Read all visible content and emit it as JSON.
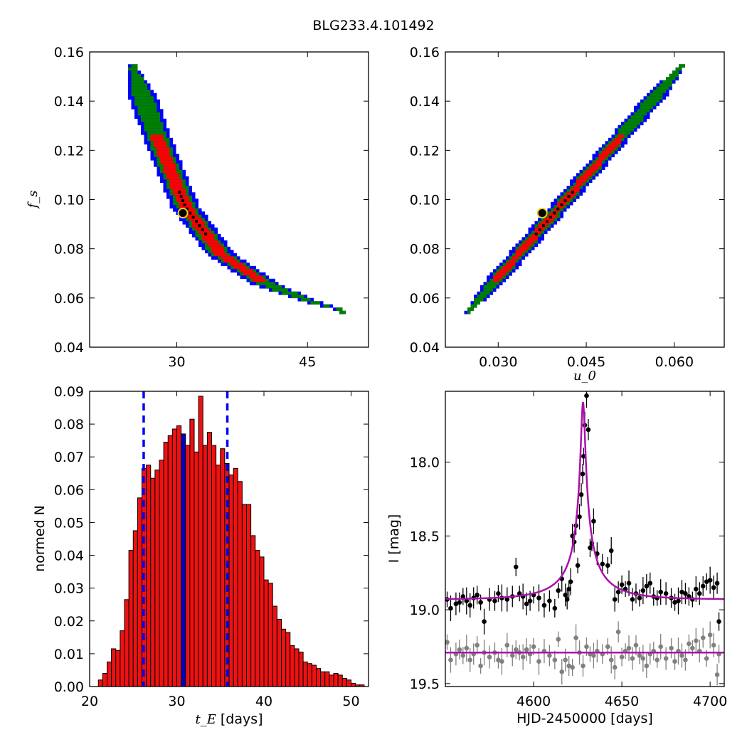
{
  "figure": {
    "title": "BLG233.4.101492"
  },
  "colors": {
    "region_outer": "#0000ff",
    "region_mid": "#008000",
    "region_inner": "#ff0000",
    "best_fit_marker": "#e8d020",
    "hist_fill": "#ee1111",
    "hist_peak": "#0000cc",
    "dashed_lines": "#0000ff",
    "model_curve": "#aa11aa",
    "data_primary": "#000000",
    "data_secondary": "#808080"
  },
  "chart_data": [
    {
      "id": "tE-vs-fs",
      "type": "heatmap",
      "title": "",
      "xlabel": "",
      "ylabel": "f_s",
      "xlim": [
        20,
        52
      ],
      "ylim": [
        0.04,
        0.16
      ],
      "xticks": [
        "30",
        "45"
      ],
      "xtick_values": [
        30,
        45
      ],
      "yticks": [
        "0.04",
        "0.06",
        "0.08",
        "0.10",
        "0.12",
        "0.14",
        "0.16"
      ],
      "ytick_values": [
        0.04,
        0.06,
        0.08,
        0.1,
        0.12,
        0.14,
        0.16
      ],
      "band_centerline": {
        "x": [
          25,
          28,
          31,
          35,
          40,
          45,
          49
        ],
        "y": [
          0.153,
          0.123,
          0.097,
          0.078,
          0.066,
          0.059,
          0.055
        ]
      },
      "best_fit": {
        "x": 30.7,
        "y": 0.0945
      }
    },
    {
      "id": "u0-vs-fs",
      "type": "heatmap",
      "title": "",
      "xlabel": "u_0",
      "ylabel": "",
      "xlim": [
        0.021,
        0.0685
      ],
      "ylim": [
        0.04,
        0.16
      ],
      "xticks": [
        "0.030",
        "0.045",
        "0.060"
      ],
      "xtick_values": [
        0.03,
        0.045,
        0.06
      ],
      "yticks": [
        "0.04",
        "0.06",
        "0.08",
        "0.10",
        "0.12",
        "0.14",
        "0.16"
      ],
      "ytick_values": [
        0.04,
        0.06,
        0.08,
        0.1,
        0.12,
        0.14,
        0.16
      ],
      "band_endpoints": {
        "x": [
          0.0252,
          0.0612
        ],
        "y": [
          0.055,
          0.154
        ]
      },
      "best_fit": {
        "x": 0.0375,
        "y": 0.0945
      }
    },
    {
      "id": "tE-histogram",
      "type": "bar",
      "title": "",
      "xlabel": "t_E",
      "xlabel_unit": "[days]",
      "ylabel": "normed N",
      "xlim": [
        20,
        52
      ],
      "ylim": [
        0,
        0.09
      ],
      "xticks": [
        "20",
        "30",
        "40",
        "50"
      ],
      "xtick_values": [
        20,
        30,
        40,
        50
      ],
      "yticks": [
        "0.00",
        "0.01",
        "0.02",
        "0.03",
        "0.04",
        "0.05",
        "0.06",
        "0.07",
        "0.08",
        "0.09"
      ],
      "ytick_values": [
        0,
        0.01,
        0.02,
        0.03,
        0.04,
        0.05,
        0.06,
        0.07,
        0.08,
        0.09
      ],
      "bin_start": 20.0,
      "bin_width": 0.5,
      "values": [
        0.0,
        0.0,
        0.002,
        0.004,
        0.0075,
        0.0115,
        0.011,
        0.017,
        0.0265,
        0.0415,
        0.0475,
        0.0575,
        0.0665,
        0.0675,
        0.0635,
        0.066,
        0.069,
        0.0745,
        0.0765,
        0.0785,
        0.0795,
        0.077,
        0.0735,
        0.0815,
        0.0715,
        0.0885,
        0.0735,
        0.0775,
        0.0735,
        0.0675,
        0.0725,
        0.068,
        0.0645,
        0.0665,
        0.0625,
        0.0555,
        0.0555,
        0.046,
        0.0415,
        0.0395,
        0.0325,
        0.0315,
        0.0245,
        0.0205,
        0.0175,
        0.0165,
        0.0125,
        0.0115,
        0.0105,
        0.0075,
        0.007,
        0.0065,
        0.0055,
        0.0045,
        0.0045,
        0.0035,
        0.004,
        0.0035,
        0.0025,
        0.002,
        0.001,
        0.0005,
        0.0005,
        0.0
      ],
      "highlight_bin_index": 21,
      "vlines_dashed": [
        26.2,
        35.8
      ]
    },
    {
      "id": "light-curve",
      "type": "scatter",
      "title": "",
      "xlabel": "HJD-2450000 [days]",
      "ylabel": "I [mag]",
      "xlim": [
        4550,
        4708
      ],
      "ylim": [
        19.52,
        17.52
      ],
      "xticks": [
        "4600",
        "4650",
        "4700"
      ],
      "xtick_values": [
        4600,
        4650,
        4700
      ],
      "yticks": [
        "18.0",
        "18.5",
        "19.0",
        "19.5"
      ],
      "ytick_values": [
        18.0,
        18.5,
        19.0,
        19.5
      ],
      "model": {
        "t0": 4628.0,
        "tE": 30.7,
        "u0": 0.0375,
        "fs": 0.0945,
        "baseline": 18.93
      },
      "offset_baseline": 19.29,
      "series": [
        {
          "x": [
            4551,
            4553,
            4556,
            4558,
            4560,
            4562,
            4564,
            4566,
            4568,
            4570,
            4572,
            4575,
            4578,
            4580,
            4582,
            4585,
            4588,
            4590,
            4592,
            4594,
            4596,
            4598,
            4600,
            4603,
            4606,
            4609,
            4612,
            4614,
            4616,
            4618,
            4619,
            4620,
            4621,
            4622,
            4623,
            4624,
            4625,
            4626,
            4627,
            4627.8,
            4628.3,
            4629,
            4630,
            4631,
            4632,
            4633,
            4634,
            4636,
            4639,
            4642,
            4644,
            4646,
            4648,
            4650,
            4652,
            4654,
            4656,
            4658,
            4660,
            4662,
            4664,
            4666,
            4668,
            4670,
            4672,
            4675,
            4678,
            4680,
            4682,
            4684,
            4686,
            4688,
            4690,
            4692,
            4694,
            4696,
            4698,
            4700,
            4702,
            4704,
            4705
          ],
          "y": [
            18.93,
            18.99,
            18.96,
            18.95,
            18.91,
            18.94,
            18.97,
            18.92,
            18.9,
            18.95,
            19.08,
            18.93,
            18.94,
            18.89,
            18.92,
            18.93,
            18.91,
            18.71,
            18.89,
            18.91,
            18.96,
            18.94,
            18.9,
            18.92,
            18.97,
            18.94,
            18.99,
            18.87,
            18.79,
            18.9,
            18.93,
            18.86,
            18.81,
            18.5,
            18.54,
            18.43,
            18.7,
            18.37,
            18.22,
            18.08,
            17.96,
            17.75,
            17.55,
            17.78,
            18.58,
            18.55,
            18.4,
            18.62,
            18.69,
            18.7,
            18.6,
            18.93,
            18.88,
            18.83,
            18.86,
            18.82,
            18.93,
            18.89,
            18.92,
            18.87,
            18.84,
            18.82,
            18.91,
            18.92,
            18.88,
            18.89,
            18.92,
            18.95,
            18.94,
            18.88,
            18.89,
            18.91,
            18.93,
            18.86,
            18.89,
            18.84,
            18.81,
            18.8,
            18.85,
            18.82,
            19.08
          ]
        },
        {
          "x": [
            4551,
            4553,
            4556,
            4558,
            4560,
            4562,
            4564,
            4566,
            4568,
            4570,
            4572,
            4575,
            4578,
            4580,
            4582,
            4585,
            4588,
            4590,
            4592,
            4594,
            4596,
            4598,
            4600,
            4603,
            4606,
            4609,
            4612,
            4614,
            4616,
            4618,
            4620,
            4622,
            4624,
            4626,
            4628,
            4630,
            4632,
            4634,
            4636,
            4639,
            4642,
            4644,
            4646,
            4648,
            4650,
            4652,
            4654,
            4656,
            4658,
            4660,
            4662,
            4664,
            4666,
            4668,
            4670,
            4672,
            4675,
            4678,
            4680,
            4682,
            4684,
            4686,
            4688,
            4690,
            4692,
            4694,
            4696,
            4698,
            4700,
            4702,
            4704,
            4705
          ],
          "y": [
            19.22,
            19.34,
            19.3,
            19.27,
            19.31,
            19.26,
            19.34,
            19.3,
            19.24,
            19.38,
            19.29,
            19.32,
            19.29,
            19.34,
            19.35,
            19.24,
            19.31,
            19.27,
            19.29,
            19.32,
            19.27,
            19.3,
            19.25,
            19.35,
            19.28,
            19.31,
            19.34,
            19.2,
            19.42,
            19.34,
            19.38,
            19.39,
            19.19,
            19.29,
            19.38,
            19.25,
            19.3,
            19.31,
            19.28,
            19.3,
            19.25,
            19.34,
            19.39,
            19.15,
            19.32,
            19.28,
            19.26,
            19.33,
            19.24,
            19.31,
            19.33,
            19.38,
            19.3,
            19.28,
            19.34,
            19.25,
            19.33,
            19.26,
            19.35,
            19.28,
            19.31,
            19.34,
            19.23,
            19.26,
            19.21,
            19.28,
            19.19,
            19.33,
            19.17,
            19.24,
            19.44,
            19.3
          ]
        }
      ]
    }
  ]
}
